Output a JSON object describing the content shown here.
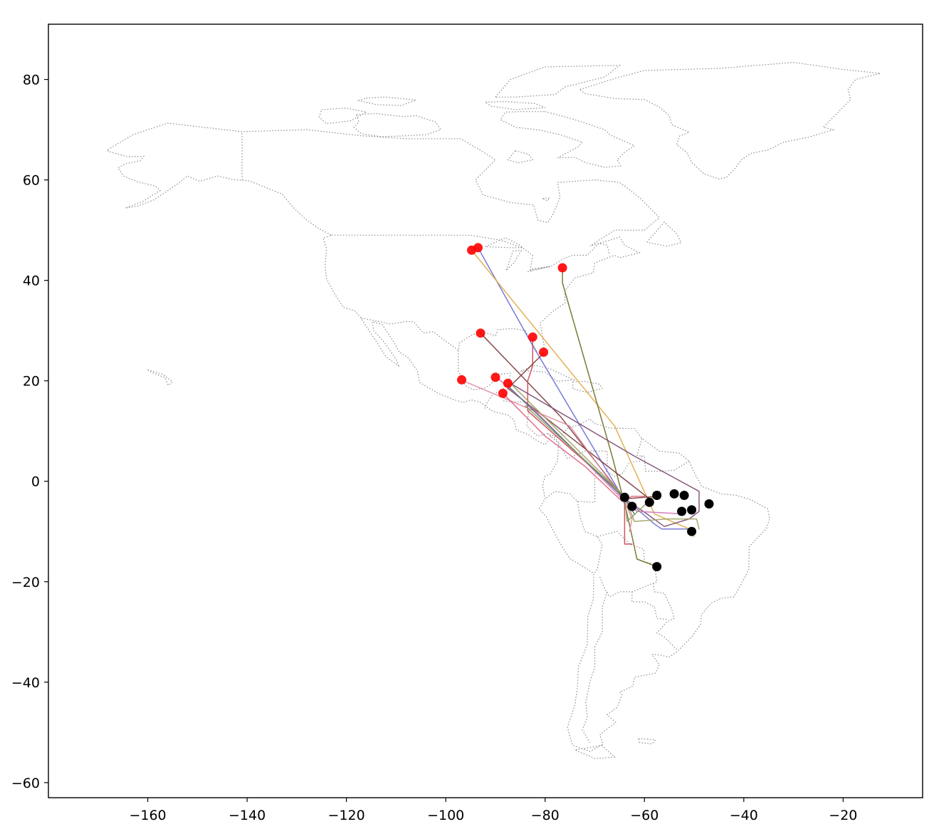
{
  "chart_data": {
    "type": "scatter",
    "subtype": "map-with-tracks",
    "title": "",
    "xlabel": "",
    "ylabel": "",
    "xlim": [
      -180,
      -4
    ],
    "ylim": [
      -63,
      91
    ],
    "xticks": [
      -160,
      -140,
      -120,
      -100,
      -80,
      -60,
      -40,
      -20
    ],
    "yticks": [
      80,
      60,
      40,
      20,
      0,
      -20,
      -40,
      -60
    ],
    "xtick_labels": [
      "−160",
      "−140",
      "−120",
      "−100",
      "−80",
      "−60",
      "−40",
      "−20"
    ],
    "ytick_labels": [
      "80",
      "60",
      "40",
      "20",
      "0",
      "−20",
      "−40",
      "−60"
    ],
    "grid": false,
    "legend": null,
    "colors": {
      "start_marker": "#ff0000",
      "end_marker": "#000000",
      "coastline": "#8c8c8c",
      "frame": "#000000"
    },
    "tracks": [
      {
        "color": "#6b6bd6",
        "points": [
          [
            -93.5,
            46.5
          ],
          [
            -82.5,
            27
          ],
          [
            -64.5,
            -3
          ],
          [
            -58,
            -8.5
          ],
          [
            -56.5,
            -9.5
          ],
          [
            -50.5,
            -9.5
          ]
        ]
      },
      {
        "color": "#e0a840",
        "points": [
          [
            -94.8,
            46
          ],
          [
            -66,
            11
          ],
          [
            -58,
            -6.5
          ],
          [
            -51,
            -9.5
          ],
          [
            -50,
            -11
          ]
        ]
      },
      {
        "color": "#6b6b20",
        "points": [
          [
            -76.5,
            42.5
          ],
          [
            -76.5,
            39.5
          ],
          [
            -66.5,
            5
          ],
          [
            -63.5,
            -6.5
          ],
          [
            -61.5,
            -15.5
          ],
          [
            -57.5,
            -17
          ]
        ]
      },
      {
        "color": "#7a3a3a",
        "points": [
          [
            -93,
            29.5
          ],
          [
            -77,
            13
          ],
          [
            -64,
            -3.5
          ],
          [
            -57.5,
            -3
          ]
        ]
      },
      {
        "color": "#d04050",
        "points": [
          [
            -82.5,
            28.5
          ],
          [
            -82.5,
            23
          ],
          [
            -83.5,
            20
          ],
          [
            -83.5,
            14
          ],
          [
            -64,
            -3
          ],
          [
            -64,
            -12.5
          ],
          [
            -62.5,
            -12.5
          ]
        ]
      },
      {
        "color": "#7a3a3a",
        "points": [
          [
            -80.3,
            25.5
          ],
          [
            -87.5,
            18.5
          ],
          [
            -59,
            -3.5
          ],
          [
            -59,
            -4
          ]
        ]
      },
      {
        "color": "#7a4a70",
        "points": [
          [
            -87,
            19.5
          ],
          [
            -62,
            5
          ],
          [
            -49,
            -2
          ],
          [
            -49,
            -6
          ],
          [
            -51,
            -7.5
          ],
          [
            -56,
            -9
          ],
          [
            -59.5,
            -6.5
          ],
          [
            -64,
            -3.5
          ]
        ]
      },
      {
        "color": "#a0a060",
        "points": [
          [
            -87,
            19.5
          ],
          [
            -64,
            -3
          ],
          [
            -62,
            -8
          ],
          [
            -55.5,
            -7.5
          ],
          [
            -49.5,
            -7.5
          ],
          [
            -49,
            -9.5
          ]
        ]
      },
      {
        "color": "#d070b0",
        "points": [
          [
            -89.5,
            20.5
          ],
          [
            -82,
            14
          ],
          [
            -65,
            -3
          ],
          [
            -61.5,
            -6
          ],
          [
            -52,
            -6.5
          ]
        ]
      },
      {
        "color": "#e08aa0",
        "points": [
          [
            -96.5,
            20
          ],
          [
            -75,
            11
          ],
          [
            -64,
            -4
          ],
          [
            -62.5,
            -7.5
          ],
          [
            -63,
            -10
          ]
        ]
      },
      {
        "color": "#e06080",
        "points": [
          [
            -88.5,
            17.5
          ],
          [
            -80,
            9
          ],
          [
            -72,
            3
          ],
          [
            -64.5,
            -4
          ],
          [
            -62.5,
            -3
          ],
          [
            -60,
            -3
          ]
        ]
      },
      {
        "color": "#50708a",
        "points": [
          [
            -87.5,
            19
          ],
          [
            -64,
            -3.5
          ],
          [
            -62,
            -6.5
          ]
        ]
      },
      {
        "color": "#8aa060",
        "points": [
          [
            -84,
            15
          ],
          [
            -64,
            -3
          ],
          [
            -63.5,
            -8
          ],
          [
            -57,
            -2
          ]
        ]
      }
    ],
    "start_points": [
      [
        -94.8,
        46
      ],
      [
        -93.5,
        46.5
      ],
      [
        -76.5,
        42.5
      ],
      [
        -93,
        29.5
      ],
      [
        -82.5,
        28.7
      ],
      [
        -80.3,
        25.7
      ],
      [
        -90,
        20.7
      ],
      [
        -87.5,
        19.5
      ],
      [
        -88.5,
        17.5
      ],
      [
        -96.8,
        20.2
      ]
    ],
    "end_points": [
      [
        -64,
        -3.2
      ],
      [
        -62.5,
        -5
      ],
      [
        -59,
        -4.2
      ],
      [
        -57.5,
        -2.8
      ],
      [
        -54,
        -2.5
      ],
      [
        -52,
        -2.8
      ],
      [
        -47,
        -4.5
      ],
      [
        -52.5,
        -6
      ],
      [
        -50.5,
        -5.7
      ],
      [
        -50.5,
        -10
      ],
      [
        -57.5,
        -17
      ]
    ]
  }
}
